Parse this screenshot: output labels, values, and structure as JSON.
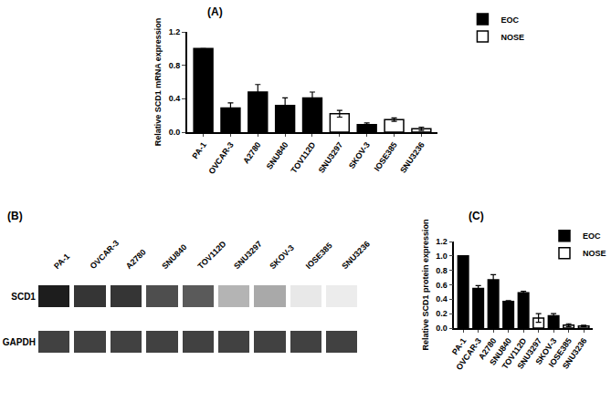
{
  "chart_data": [
    {
      "type": "bar",
      "title": "(A)",
      "y_label": "Relative SCD1 mRNA expression",
      "categories": [
        "PA-1",
        "OVCAR-3",
        "A2780",
        "SNU840",
        "TOV112D",
        "SNU3297",
        "SKOV-3",
        "IOSE385",
        "SNU3236"
      ],
      "series": [
        {
          "name": "EOC",
          "color": "#000000",
          "values": [
            1.0,
            0.29,
            0.48,
            0.32,
            0.41,
            null,
            0.09,
            null,
            null
          ],
          "errors": [
            0,
            0.06,
            0.09,
            0.09,
            0.07,
            null,
            0.02,
            null,
            null
          ]
        },
        {
          "name": "NOSE",
          "color": "#ffffff",
          "values": [
            null,
            null,
            null,
            null,
            null,
            0.22,
            null,
            0.15,
            0.04
          ],
          "errors": [
            null,
            null,
            null,
            null,
            null,
            0.04,
            null,
            0.02,
            0.02
          ]
        }
      ],
      "ylim": [
        0,
        1.2
      ],
      "yticks": [
        {
          "value": 0,
          "label": "0.0"
        },
        {
          "value": 0.4,
          "label": "0.4"
        },
        {
          "value": 0.8,
          "label": "0.8"
        },
        {
          "value": 1.2,
          "label": "1.2"
        }
      ],
      "legend": "upper right",
      "grid": false
    },
    {
      "type": "blot",
      "title": "(B)",
      "categories": [
        "PA-1",
        "OVCAR-3",
        "A2780",
        "SNU840",
        "TOV112D",
        "SNU3297",
        "SKOV-3",
        "IOSE385",
        "SNU3236"
      ],
      "rows": [
        "SCD1",
        "GAPDH"
      ],
      "cells": [
        [
          0.95,
          0.85,
          0.85,
          0.75,
          0.7,
          0.3,
          0.35,
          0.05,
          0.03
        ],
        [
          0.8,
          0.8,
          0.8,
          0.8,
          0.8,
          0.8,
          0.8,
          0.8,
          0.8
        ]
      ],
      "zlim": [
        0,
        1
      ]
    },
    {
      "type": "bar",
      "title": "(C)",
      "y_label": "Relative SCD1 protein expression",
      "categories": [
        "PA-1",
        "OVCAR-3",
        "A2780",
        "SNU840",
        "TOV112D",
        "SNU3297",
        "SKOV-3",
        "IOSE385",
        "SNU3236"
      ],
      "series": [
        {
          "name": "EOC",
          "color": "#000000",
          "values": [
            1.0,
            0.55,
            0.67,
            0.37,
            0.49,
            null,
            0.17,
            null,
            null
          ],
          "errors": [
            0,
            0.04,
            0.07,
            0.01,
            0.02,
            null,
            0.03,
            null,
            null
          ]
        },
        {
          "name": "NOSE",
          "color": "#ffffff",
          "values": [
            null,
            null,
            null,
            null,
            null,
            0.14,
            null,
            0.04,
            0.03
          ],
          "errors": [
            null,
            null,
            null,
            null,
            null,
            0.06,
            null,
            0.02,
            0.01
          ]
        }
      ],
      "ylim": [
        0,
        1.2
      ],
      "yticks": [
        {
          "value": 0,
          "label": "0.0"
        },
        {
          "value": 0.2,
          "label": "0.2"
        },
        {
          "value": 0.4,
          "label": "0.4"
        },
        {
          "value": 0.6,
          "label": "0.6"
        },
        {
          "value": 0.8,
          "label": "0.8"
        },
        {
          "value": 1.0,
          "label": "1.0"
        },
        {
          "value": 1.2,
          "label": "1.2"
        }
      ],
      "legend": "upper right",
      "grid": false
    }
  ]
}
